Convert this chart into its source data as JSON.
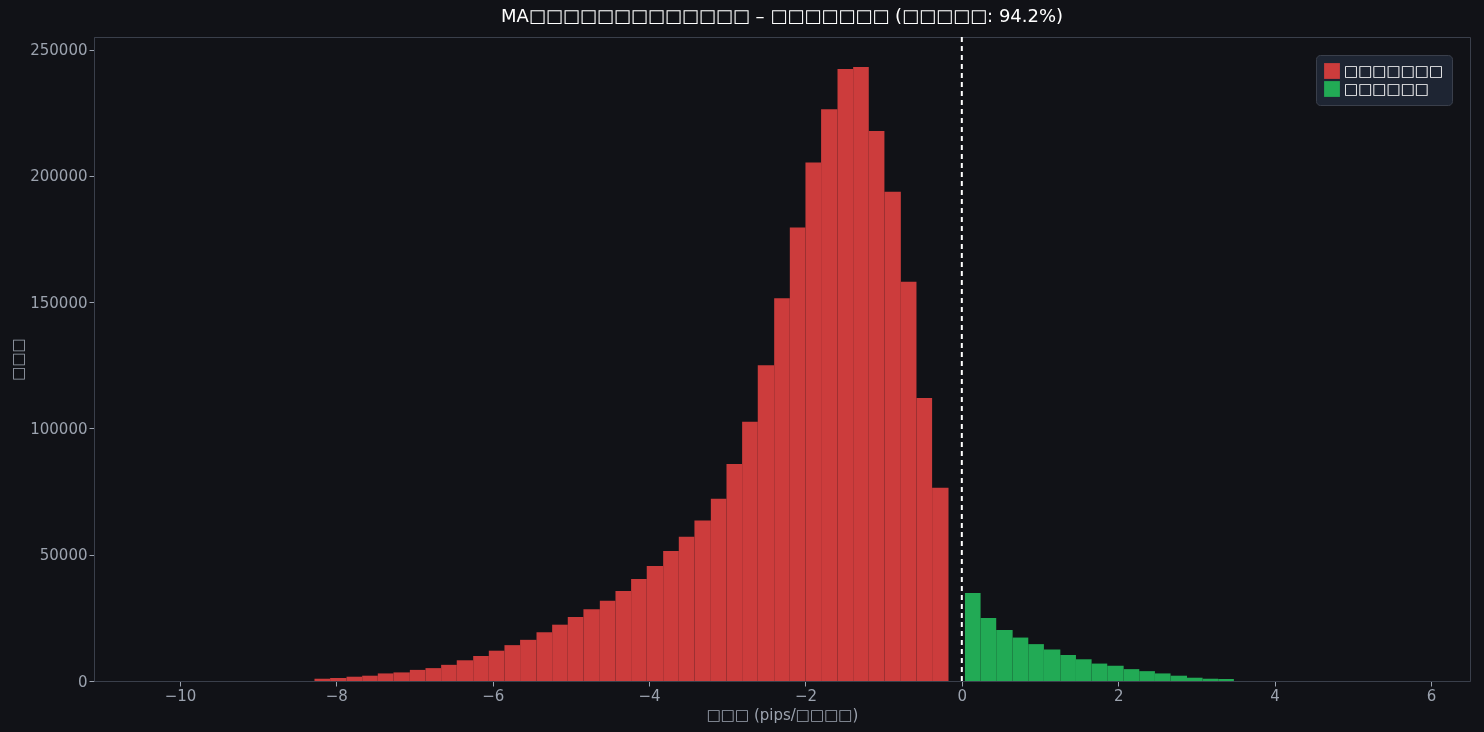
{
  "chart_data": {
    "type": "histogram",
    "title": "MA□□□□□□□□□□□□□ – □□□□□□□ (□□□□□: 94.2%)",
    "xlabel": "□□□ (pips/□□□□)",
    "ylabel": "□□□",
    "bins": [
      -8.28,
      -8.08,
      -7.87,
      -7.67,
      -7.47,
      -7.27,
      -7.06,
      -6.86,
      -6.66,
      -6.46,
      -6.25,
      -6.05,
      -5.85,
      -5.65,
      -5.44,
      -5.24,
      -5.04,
      -4.84,
      -4.63,
      -4.43,
      -4.23,
      -4.03,
      -3.82,
      -3.62,
      -3.42,
      -3.21,
      -3.01,
      -2.81,
      -2.61,
      -2.4,
      -2.2,
      -2.0,
      -1.8,
      -1.59,
      -1.39,
      -1.19,
      -0.99,
      -0.78,
      -0.58,
      -0.38,
      -0.17,
      0.04,
      0.24,
      0.44,
      0.65,
      0.85,
      1.05,
      1.26,
      1.46,
      1.66,
      1.86,
      2.07,
      2.27,
      2.47,
      2.67,
      2.88,
      3.08,
      3.28,
      3.48
    ],
    "series": [
      {
        "name": "□□□□□□□",
        "color": "#cc3c3c",
        "values": [
          900,
          1200,
          1700,
          2100,
          3000,
          3400,
          4400,
          5100,
          6400,
          8200,
          9900,
          12000,
          14200,
          16300,
          19300,
          22300,
          25300,
          28400,
          31800,
          35600,
          40400,
          45500,
          51500,
          57100,
          63600,
          72200,
          85900,
          102700,
          125000,
          151600,
          179600,
          205300,
          226400,
          242300,
          243100,
          217800,
          193700,
          158100,
          112100,
          76500,
          null,
          null,
          null,
          null,
          null,
          null,
          null,
          null,
          null,
          null,
          null,
          null,
          null,
          null,
          null,
          null,
          null,
          null
        ]
      },
      {
        "name": "□□□□□□",
        "color": "#22aa55",
        "values": [
          null,
          null,
          null,
          null,
          null,
          null,
          null,
          null,
          null,
          null,
          null,
          null,
          null,
          null,
          null,
          null,
          null,
          null,
          null,
          null,
          null,
          null,
          null,
          null,
          null,
          null,
          null,
          null,
          null,
          null,
          null,
          null,
          null,
          null,
          null,
          null,
          null,
          null,
          null,
          null,
          null,
          34800,
          24900,
          20200,
          17200,
          14600,
          12500,
          10300,
          8600,
          6900,
          6000,
          4700,
          3900,
          3000,
          2100,
          1300,
          900,
          800
        ]
      }
    ],
    "xlim": [
      -11.1,
      6.5
    ],
    "xticks": [
      -10,
      -8,
      -6,
      -4,
      -2,
      0,
      2,
      4,
      6
    ],
    "ylim": [
      0,
      255000
    ],
    "yticks": [
      0,
      50000,
      100000,
      150000,
      200000,
      250000
    ],
    "ref_lines": [
      {
        "axis": "x",
        "value": 0,
        "color": "#ffffff",
        "line_style": "dashed"
      }
    ],
    "grid": false,
    "legend": "top right"
  }
}
